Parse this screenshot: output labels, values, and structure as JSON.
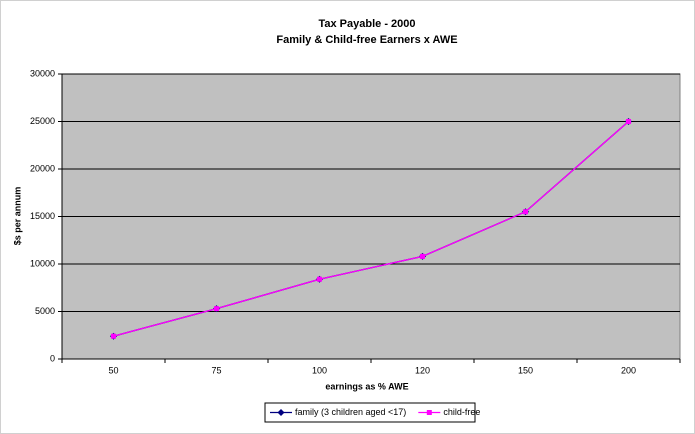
{
  "chart_data": {
    "type": "line",
    "title": "Tax Payable - 2000",
    "subtitle": "Family & Child-free Earners x AWE",
    "x_label": "earnings as % AWE",
    "y_label": "$s per annum",
    "categories": [
      "50",
      "75",
      "100",
      "120",
      "150",
      "200"
    ],
    "series": [
      {
        "name": "family (3 children aged <17)",
        "color": "#000080",
        "marker": "diamond",
        "values": [
          2400,
          5300,
          8400,
          10800,
          15500,
          25000
        ]
      },
      {
        "name": "child-free",
        "color": "#ff00ff",
        "marker": "square",
        "values": [
          2400,
          5300,
          8400,
          10800,
          15500,
          25000
        ]
      }
    ],
    "ylim": [
      0,
      30000
    ],
    "yticks": [
      0,
      5000,
      10000,
      15000,
      20000,
      25000,
      30000
    ],
    "grid": true,
    "plot_background": "#c0c0c0",
    "legend_position": "bottom"
  }
}
